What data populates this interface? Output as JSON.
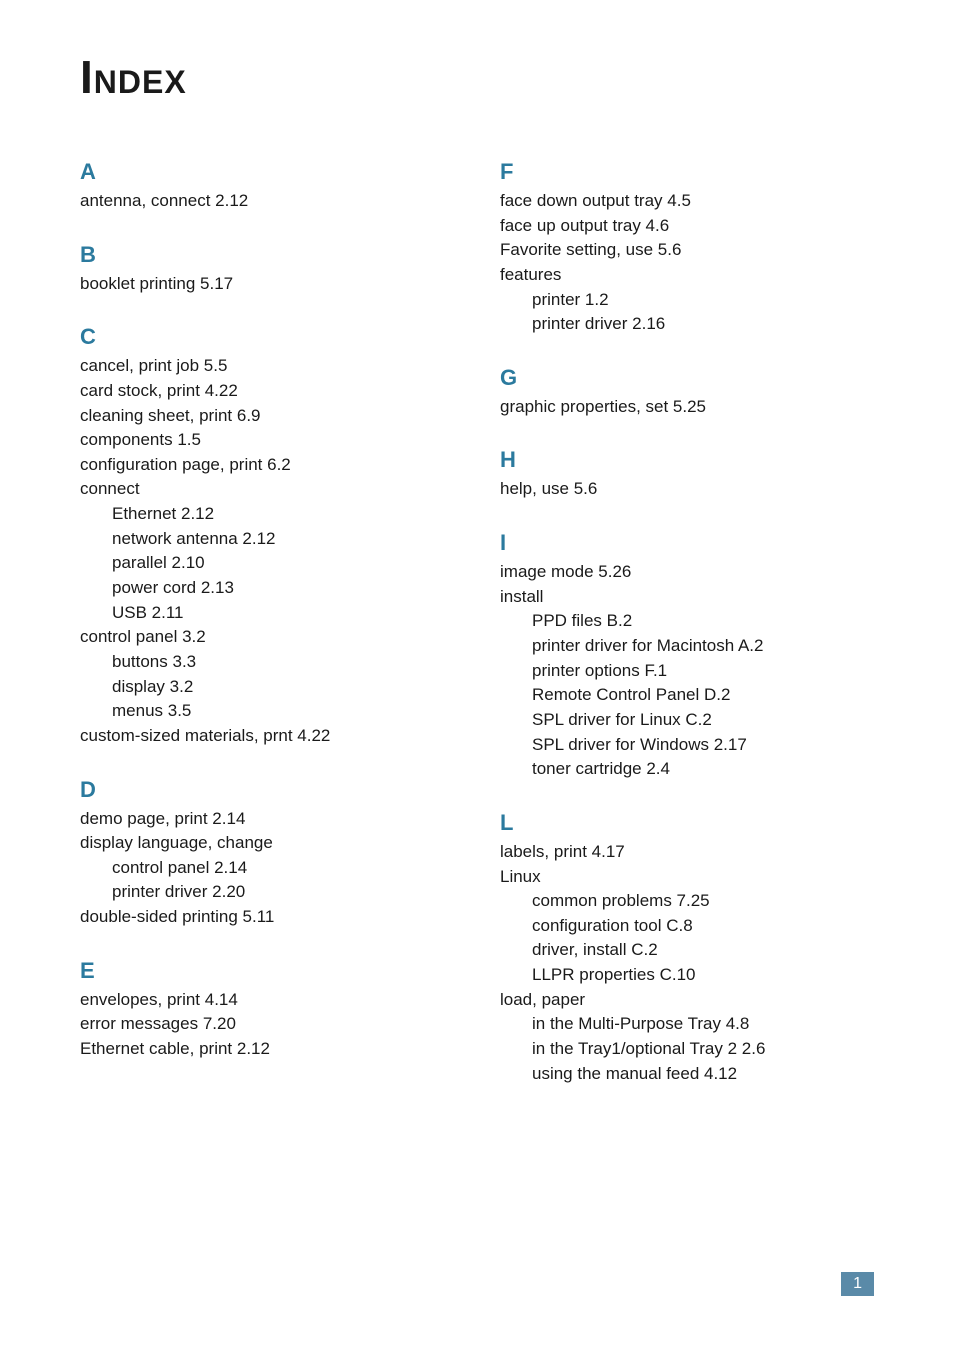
{
  "title": "Index",
  "page_number": "1",
  "colors": {
    "heading": "#2b7a9e",
    "text": "#1a1a1a",
    "page_badge_bg": "#5a8aa8",
    "page_badge_fg": "#ffffff"
  },
  "left_column": [
    {
      "letter": "A",
      "entries": [
        {
          "text": "antenna, connect 2.12",
          "indent": 0
        }
      ]
    },
    {
      "letter": "B",
      "entries": [
        {
          "text": "booklet printing 5.17",
          "indent": 0
        }
      ]
    },
    {
      "letter": "C",
      "entries": [
        {
          "text": "cancel, print job 5.5",
          "indent": 0
        },
        {
          "text": "card stock, print 4.22",
          "indent": 0
        },
        {
          "text": "cleaning sheet, print 6.9",
          "indent": 0
        },
        {
          "text": "components 1.5",
          "indent": 0
        },
        {
          "text": "configuration page, print 6.2",
          "indent": 0
        },
        {
          "text": "connect",
          "indent": 0
        },
        {
          "text": "Ethernet 2.12",
          "indent": 1
        },
        {
          "text": "network antenna 2.12",
          "indent": 1
        },
        {
          "text": "parallel 2.10",
          "indent": 1
        },
        {
          "text": "power cord 2.13",
          "indent": 1
        },
        {
          "text": "USB 2.11",
          "indent": 1
        },
        {
          "text": "control panel 3.2",
          "indent": 0
        },
        {
          "text": "buttons 3.3",
          "indent": 1
        },
        {
          "text": "display 3.2",
          "indent": 1
        },
        {
          "text": "menus 3.5",
          "indent": 1
        },
        {
          "text": "custom-sized materials, prnt 4.22",
          "indent": 0
        }
      ]
    },
    {
      "letter": "D",
      "entries": [
        {
          "text": "demo page, print 2.14",
          "indent": 0
        },
        {
          "text": "display language, change",
          "indent": 0
        },
        {
          "text": "control panel 2.14",
          "indent": 1
        },
        {
          "text": "printer driver 2.20",
          "indent": 1
        },
        {
          "text": "double-sided printing 5.11",
          "indent": 0
        }
      ]
    },
    {
      "letter": "E",
      "entries": [
        {
          "text": "envelopes, print 4.14",
          "indent": 0
        },
        {
          "text": "error messages 7.20",
          "indent": 0
        },
        {
          "text": "Ethernet cable, print 2.12",
          "indent": 0
        }
      ]
    }
  ],
  "right_column": [
    {
      "letter": "F",
      "entries": [
        {
          "text": "face down output tray 4.5",
          "indent": 0
        },
        {
          "text": "face up output tray 4.6",
          "indent": 0
        },
        {
          "text": "Favorite setting, use 5.6",
          "indent": 0
        },
        {
          "text": "features",
          "indent": 0
        },
        {
          "text": "printer 1.2",
          "indent": 1
        },
        {
          "text": "printer driver 2.16",
          "indent": 1
        }
      ]
    },
    {
      "letter": "G",
      "entries": [
        {
          "text": "graphic properties, set 5.25",
          "indent": 0
        }
      ]
    },
    {
      "letter": "H",
      "entries": [
        {
          "text": "help, use 5.6",
          "indent": 0
        }
      ]
    },
    {
      "letter": "I",
      "entries": [
        {
          "text": "image mode 5.26",
          "indent": 0
        },
        {
          "text": "install",
          "indent": 0
        },
        {
          "text": "PPD files B.2",
          "indent": 1
        },
        {
          "text": "printer driver for Macintosh A.2",
          "indent": 1
        },
        {
          "text": "printer options F.1",
          "indent": 1
        },
        {
          "text": "Remote Control Panel D.2",
          "indent": 1
        },
        {
          "text": "SPL driver for Linux C.2",
          "indent": 1
        },
        {
          "text": "SPL driver for Windows 2.17",
          "indent": 1
        },
        {
          "text": "toner cartridge 2.4",
          "indent": 1
        }
      ]
    },
    {
      "letter": "L",
      "entries": [
        {
          "text": "labels, print 4.17",
          "indent": 0
        },
        {
          "text": "Linux",
          "indent": 0
        },
        {
          "text": "common problems 7.25",
          "indent": 1
        },
        {
          "text": "configuration tool C.8",
          "indent": 1
        },
        {
          "text": "driver, install C.2",
          "indent": 1
        },
        {
          "text": "LLPR properties C.10",
          "indent": 1
        },
        {
          "text": "load, paper",
          "indent": 0
        },
        {
          "text": "in the Multi-Purpose Tray 4.8",
          "indent": 1
        },
        {
          "text": "in the Tray1/optional Tray 2 2.6",
          "indent": 1
        },
        {
          "text": "using the manual feed 4.12",
          "indent": 1
        }
      ]
    }
  ]
}
